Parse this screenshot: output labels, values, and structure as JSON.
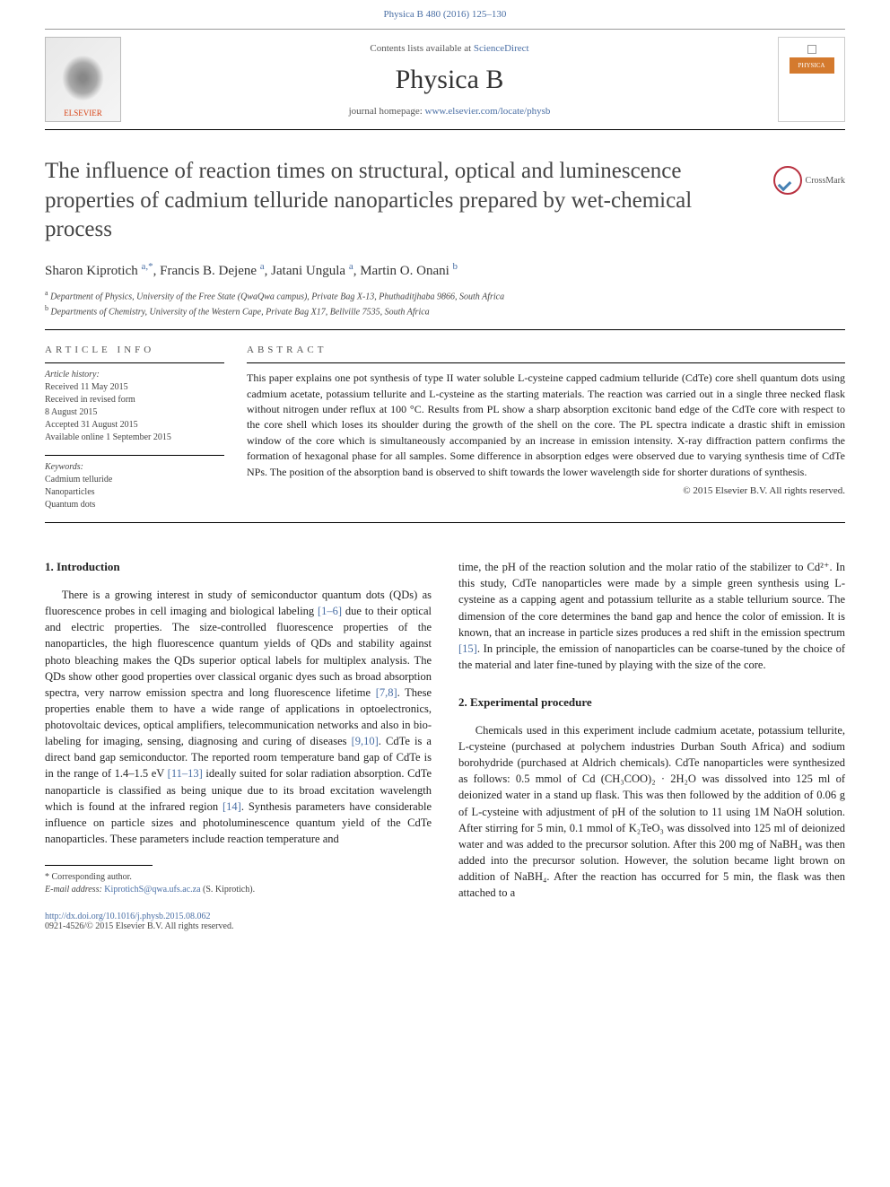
{
  "header": {
    "citation": "Physica B 480 (2016) 125–130",
    "contents_prefix": "Contents lists available at ",
    "contents_link": "ScienceDirect",
    "journal_name": "Physica B",
    "homepage_prefix": "journal homepage: ",
    "homepage_url": "www.elsevier.com/locate/physb",
    "publisher_logo_text": "ELSEVIER",
    "cover_label": "PHYSICA"
  },
  "crossmark": {
    "label": "CrossMark"
  },
  "article": {
    "title": "The influence of reaction times on structural, optical and luminescence properties of cadmium telluride nanoparticles prepared by wet-chemical process",
    "authors_html": "Sharon Kiprotich <sup class=\"author-sup\">a,*</sup>, Francis B. Dejene <sup class=\"author-sup\">a</sup>, Jatani Ungula <sup class=\"author-sup\">a</sup>, Martin O. Onani <sup class=\"author-sup\">b</sup>",
    "affiliations": [
      {
        "sup": "a",
        "text": "Department of Physics, University of the Free State (QwaQwa campus), Private Bag X-13, Phuthaditjhaba 9866, South Africa"
      },
      {
        "sup": "b",
        "text": "Departments of Chemistry, University of the Western Cape, Private Bag X17, Bellville 7535, South Africa"
      }
    ]
  },
  "info": {
    "section_label": "ARTICLE INFO",
    "history_heading": "Article history:",
    "history": [
      "Received 11 May 2015",
      "Received in revised form",
      "8 August 2015",
      "Accepted 31 August 2015",
      "Available online 1 September 2015"
    ],
    "keywords_heading": "Keywords:",
    "keywords": [
      "Cadmium telluride",
      "Nanoparticles",
      "Quantum dots"
    ]
  },
  "abstract": {
    "section_label": "ABSTRACT",
    "text": "This paper explains one pot synthesis of type II water soluble L-cysteine capped cadmium telluride (CdTe) core shell quantum dots using cadmium acetate, potassium tellurite and L-cysteine as the starting materials. The reaction was carried out in a single three necked flask without nitrogen under reflux at 100 °C. Results from PL show a sharp absorption excitonic band edge of the CdTe core with respect to the core shell which loses its shoulder during the growth of the shell on the core. The PL spectra indicate a drastic shift in emission window of the core which is simultaneously accompanied by an increase in emission intensity. X-ray diffraction pattern confirms the formation of hexagonal phase for all samples. Some difference in absorption edges were observed due to varying synthesis time of CdTe NPs. The position of the absorption band is observed to shift towards the lower wavelength side for shorter durations of synthesis.",
    "copyright": "© 2015 Elsevier B.V. All rights reserved."
  },
  "body": {
    "intro_heading": "1.  Introduction",
    "intro_p1_a": "There is a growing interest in study of semiconductor quantum dots (QDs) as fluorescence probes in cell imaging and biological labeling ",
    "intro_ref1": "[1–6]",
    "intro_p1_b": " due to their optical and electric properties. The size-controlled fluorescence properties of the nanoparticles, the high fluorescence quantum yields of QDs and stability against photo bleaching makes the QDs superior optical labels for multiplex analysis. The QDs show other good properties over classical organic dyes such as broad absorption spectra, very narrow emission spectra and long fluorescence lifetime ",
    "intro_ref2": "[7,8]",
    "intro_p1_c": ". These properties enable them to have a wide range of applications in optoelectronics, photovoltaic devices, optical amplifiers, telecommunication networks and also in bio-labeling for imaging, sensing, diagnosing and curing of diseases ",
    "intro_ref3": "[9,10]",
    "intro_p1_d": ". CdTe is a direct band gap semiconductor. The reported room temperature band gap of CdTe is in the range of 1.4–1.5 eV ",
    "intro_ref4": "[11–13]",
    "intro_p1_e": " ideally suited for solar radiation absorption. CdTe nanoparticle is classified as being unique due to its broad excitation wavelength which is found at the infrared region ",
    "intro_ref5": "[14]",
    "intro_p1_f": ". Synthesis parameters have considerable influence on particle sizes and photoluminescence quantum yield of the CdTe nanoparticles. These parameters include reaction temperature and",
    "col2_p1_a": "time, the pH of the reaction solution and the molar ratio of the stabilizer to Cd²⁺. In this study, CdTe nanoparticles were made by a simple green synthesis using L-cysteine as a capping agent and potassium tellurite as a stable tellurium source. The dimension of the core determines the band gap and hence the color of emission. It is known, that an increase in particle sizes produces a red shift in the emission spectrum ",
    "col2_ref1": "[15]",
    "col2_p1_b": ". In principle, the emission of nanoparticles can be coarse-tuned by the choice of the material and later fine-tuned by playing with the size of the core.",
    "exp_heading": "2.  Experimental procedure",
    "exp_p1": "Chemicals used in this experiment include cadmium acetate, potassium tellurite, L-cysteine (purchased at polychem industries Durban South Africa) and sodium borohydride (purchased at Aldrich chemicals). CdTe nanoparticles were synthesized as follows: 0.5 mmol of Cd (CH₃COO)₂ · 2H₂O was dissolved into 125 ml of deionized water in a stand up flask. This was then followed by the addition of 0.06 g of L-cysteine with adjustment of pH of the solution to 11 using 1M NaOH solution. After stirring for 5 min, 0.1 mmol of K₂TeO₃ was dissolved into 125 ml of deionized water and was added to the precursor solution. After this 200 mg of NaBH₄ was then added into the precursor solution. However, the solution became light brown on addition of NaBH₄. After the reaction has occurred for 5 min, the flask was then attached to a"
  },
  "footnotes": {
    "corr": "* Corresponding author.",
    "email_label": "E-mail address: ",
    "email": "KiprotichS@qwa.ufs.ac.za",
    "email_suffix": " (S. Kiprotich)."
  },
  "footer": {
    "doi": "http://dx.doi.org/10.1016/j.physb.2015.08.062",
    "issn_line": "0921-4526/© 2015 Elsevier B.V. All rights reserved."
  },
  "colors": {
    "link": "#4a6fa5",
    "text": "#222222",
    "rule": "#000000",
    "publisher_orange": "#d84315"
  }
}
